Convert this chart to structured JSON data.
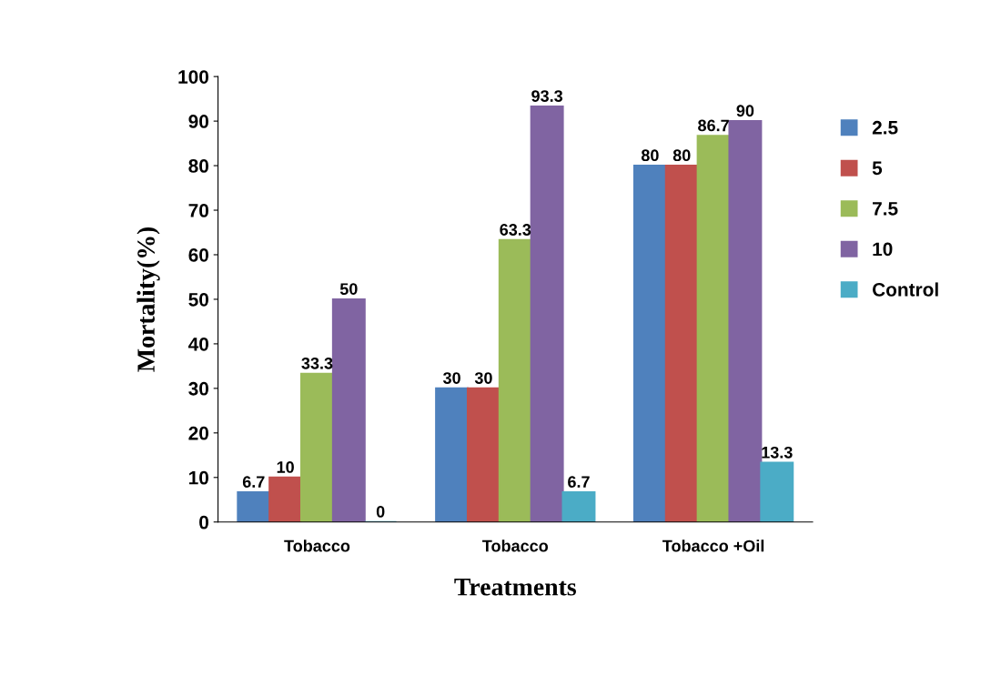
{
  "chart_data": {
    "type": "bar",
    "xlabel": "Treatments",
    "ylabel": "Mortality(%)",
    "categories": [
      "Tobacco",
      "Tobacco",
      "Tobacco +Oil"
    ],
    "series": [
      {
        "name": "2.5",
        "color": "#4f81bd",
        "values": [
          6.7,
          30,
          80
        ]
      },
      {
        "name": "5",
        "color": "#c0504d",
        "values": [
          10,
          30,
          80
        ]
      },
      {
        "name": "7.5",
        "color": "#9bbb59",
        "values": [
          33.3,
          63.3,
          86.7
        ]
      },
      {
        "name": "10",
        "color": "#8064a2",
        "values": [
          50,
          93.3,
          90
        ]
      },
      {
        "name": "Control",
        "color": "#4bacc6",
        "values": [
          0,
          6.7,
          13.3
        ]
      }
    ],
    "ylim": [
      0,
      100
    ],
    "yticks": [
      0,
      10,
      20,
      30,
      40,
      50,
      60,
      70,
      80,
      90,
      100
    ],
    "data_labels": true,
    "legend": "right",
    "grid": false
  }
}
